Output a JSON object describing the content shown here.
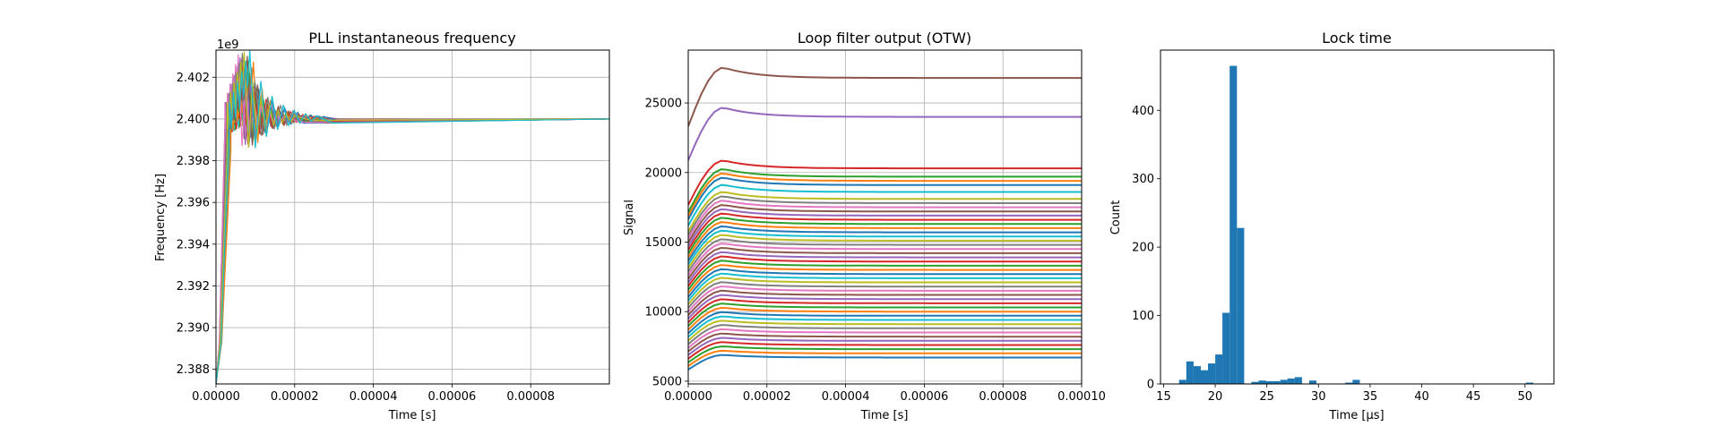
{
  "chart_data": [
    {
      "type": "line",
      "title": "PLL instantaneous frequency",
      "xlabel": "Time [s]",
      "ylabel": "Frequency [Hz]",
      "y_offset_label": "1e9",
      "xlim": [
        0,
        0.0001
      ],
      "ylim": [
        2.3873,
        2.4033
      ],
      "xticks": [
        0,
        2e-05,
        4e-05,
        6e-05,
        8e-05
      ],
      "xtick_labels": [
        "0.00000",
        "0.00002",
        "0.00004",
        "0.00006",
        "0.00008"
      ],
      "yticks": [
        2.388,
        2.39,
        2.392,
        2.394,
        2.396,
        2.398,
        2.4,
        2.402
      ],
      "ytick_labels": [
        "2.388",
        "2.390",
        "2.392",
        "2.394",
        "2.396",
        "2.398",
        "2.400",
        "2.402"
      ],
      "grid": true,
      "series_count": 30,
      "settle_value": 2.4,
      "peak_range": [
        2.401,
        2.403
      ],
      "peak_time": 9.5e-06,
      "settle_time": 2.8e-05
    },
    {
      "type": "line",
      "title": "Loop filter output (OTW)",
      "xlabel": "Time [s]",
      "ylabel": "Signal",
      "xlim": [
        0,
        0.0001
      ],
      "ylim": [
        4800,
        28800
      ],
      "xticks": [
        0,
        2e-05,
        4e-05,
        6e-05,
        8e-05,
        0.0001
      ],
      "xtick_labels": [
        "0.00000",
        "0.00002",
        "0.00004",
        "0.00006",
        "0.00008",
        "0.00010"
      ],
      "yticks": [
        5000,
        10000,
        15000,
        20000,
        25000
      ],
      "ytick_labels": [
        "5000",
        "10000",
        "15000",
        "20000",
        "25000"
      ],
      "grid": true,
      "final_values": [
        6700,
        7000,
        7300,
        7600,
        7900,
        8200,
        8500,
        8800,
        9100,
        9400,
        9700,
        10000,
        10300,
        10600,
        10900,
        11200,
        11500,
        11800,
        12100,
        12400,
        12700,
        13000,
        13300,
        13600,
        13900,
        14200,
        14500,
        14800,
        15100,
        15400,
        15700,
        16000,
        16300,
        16600,
        16900,
        17200,
        17500,
        17800,
        18100,
        18600,
        19100,
        19400,
        19700,
        20300,
        24000,
        26800
      ],
      "overshoot_time": 9e-06
    },
    {
      "type": "bar",
      "title": "Lock time",
      "xlabel": "Time [μs]",
      "ylabel": "Count",
      "xlim": [
        14.7,
        52.8
      ],
      "ylim": [
        0,
        488
      ],
      "xticks": [
        15,
        20,
        25,
        30,
        35,
        40,
        45,
        50
      ],
      "xtick_labels": [
        "15",
        "20",
        "25",
        "30",
        "35",
        "40",
        "45",
        "50"
      ],
      "yticks": [
        0,
        100,
        200,
        300,
        400
      ],
      "ytick_labels": [
        "0",
        "100",
        "200",
        "300",
        "400"
      ],
      "grid": false,
      "bin_start": 16.5,
      "bin_width": 0.7,
      "counts": [
        6,
        33,
        26,
        20,
        30,
        43,
        104,
        465,
        228,
        0,
        3,
        5,
        4,
        4,
        6,
        8,
        10,
        0,
        5,
        0,
        0,
        0,
        0,
        2,
        6,
        0,
        0,
        0,
        0,
        0,
        0,
        0,
        0,
        0,
        0,
        0,
        0,
        0,
        0,
        0,
        0,
        0,
        0,
        0,
        0,
        0,
        0,
        0,
        2
      ],
      "bar_color": "#1f77b4"
    }
  ]
}
